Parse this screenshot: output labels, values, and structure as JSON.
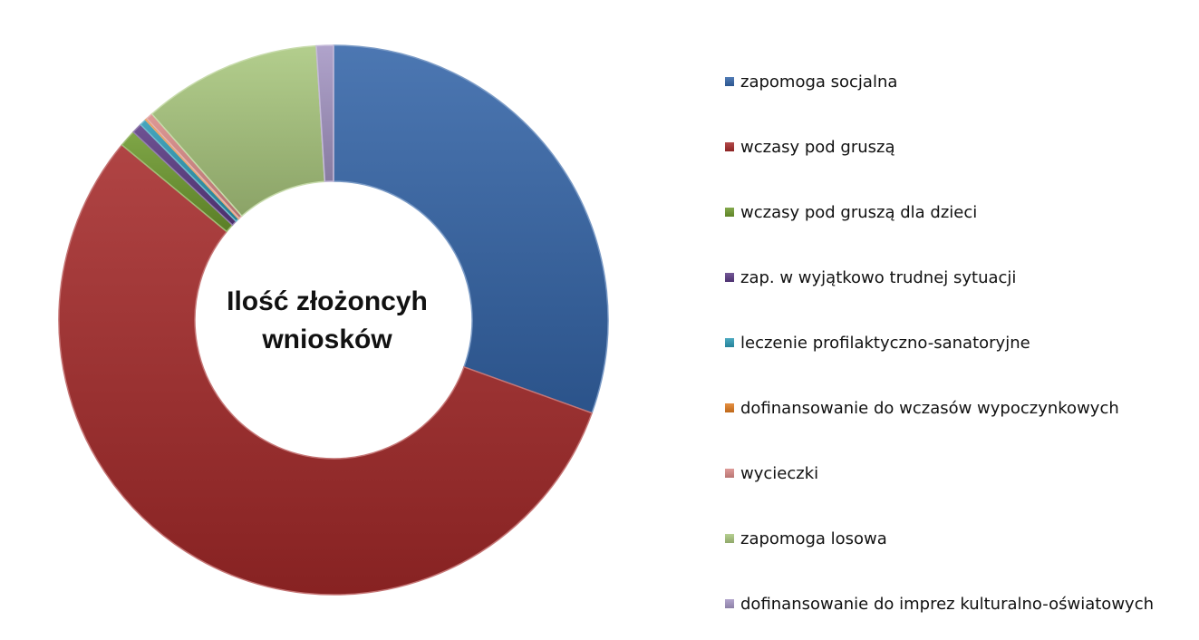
{
  "chart_data": {
    "type": "pie",
    "variant": "doughnut",
    "title": "Ilość złożoncyh wniosków",
    "legend_position": "right",
    "series": [
      {
        "name": "zapomoga socjalna",
        "value": 30.5,
        "color": "#3465A8"
      },
      {
        "name": "wczasy pod gruszą",
        "value": 55.5,
        "color": "#A52A2A"
      },
      {
        "name": "wczasy pod gruszą dla dzieci",
        "value": 1.0,
        "color": "#6E9A2E"
      },
      {
        "name": "zap. w wyjątkowo trudnej sytuacji",
        "value": 0.6,
        "color": "#5B3A84"
      },
      {
        "name": "leczenie profilaktyczno-sanatoryjne",
        "value": 0.4,
        "color": "#2C9AB5"
      },
      {
        "name": "dofinansowanie do wczasów wypoczynkowych",
        "value": 0.1,
        "color": "#E07B20"
      },
      {
        "name": "wycieczki",
        "value": 0.4,
        "color": "#D98A87"
      },
      {
        "name": "zapomoga losowa",
        "value": 10.5,
        "color": "#A9C77E"
      },
      {
        "name": "dofinansowanie do imprez kulturalno-oświatowych",
        "value": 1.0,
        "color": "#A596C4"
      }
    ]
  }
}
